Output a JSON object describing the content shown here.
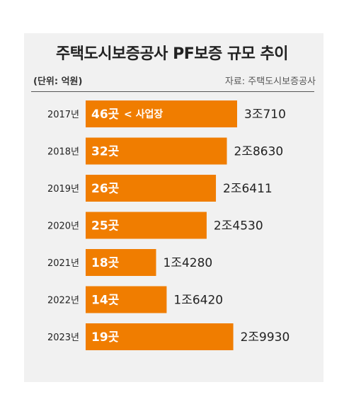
{
  "chart_data": {
    "type": "bar",
    "orientation": "horizontal",
    "title": "주택도시보증공사 PF보증 규모 추이",
    "unit_label": "(단위: 억원)",
    "source": "자료: 주택도시보증공사",
    "categories": [
      "2017년",
      "2018년",
      "2019년",
      "2020년",
      "2021년",
      "2022년",
      "2023년"
    ],
    "values": [
      30710,
      28630,
      26411,
      24530,
      14280,
      16420,
      29930
    ],
    "value_labels": [
      "3조710",
      "2조8630",
      "2조6411",
      "2조4530",
      "1조4280",
      "1조6420",
      "2조9930"
    ],
    "bar_annotations": [
      "46곳",
      "32곳",
      "26곳",
      "25곳",
      "18곳",
      "14곳",
      "19곳"
    ],
    "annotation_note": "< 사업장",
    "colors": {
      "bar": "#f07d00",
      "background": "#f1f1f1"
    },
    "legend": "none",
    "grid": false
  }
}
